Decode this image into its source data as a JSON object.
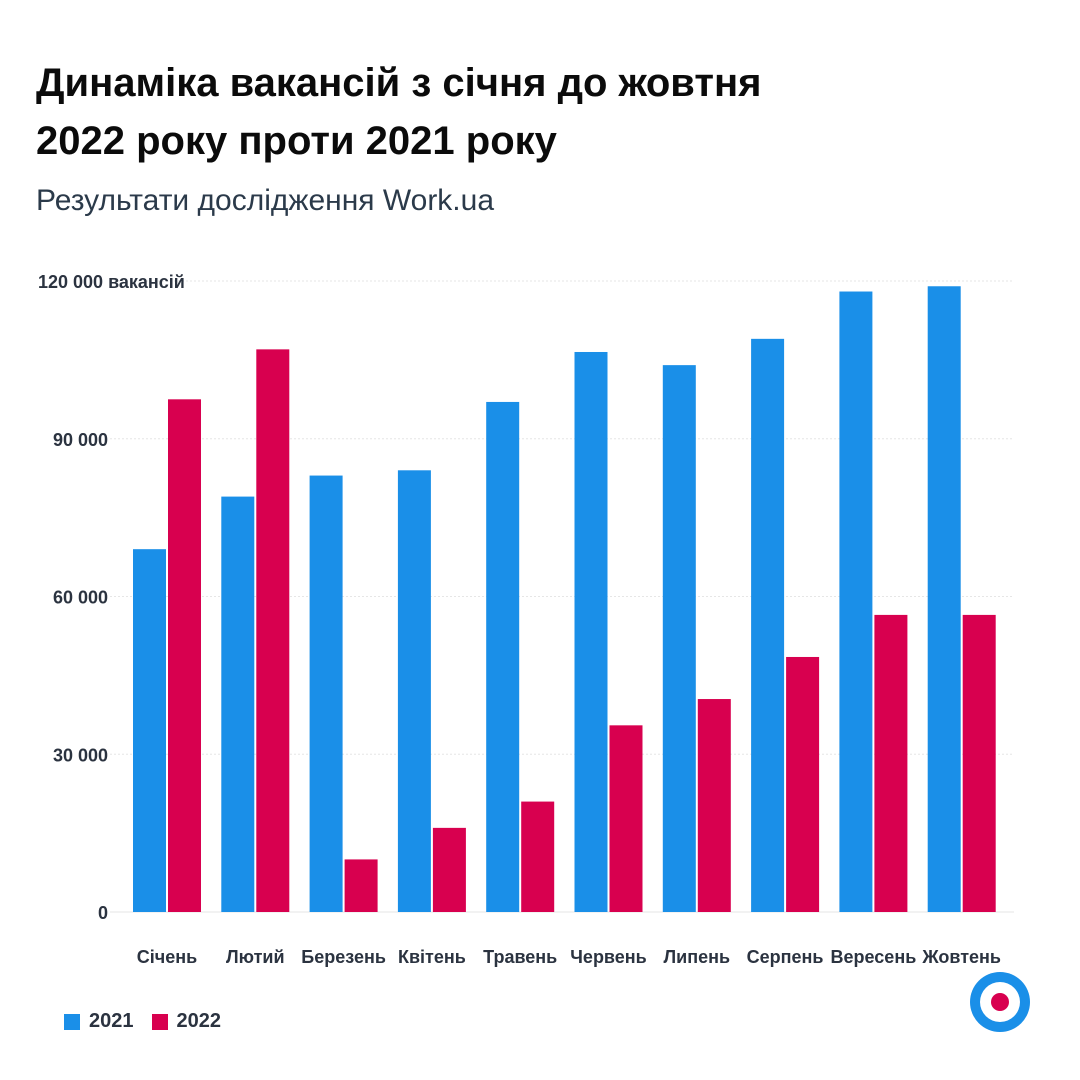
{
  "header": {
    "title_line1": "Динаміка вакансій з січня до жовтня",
    "title_line2": "2022 року проти 2021 року",
    "subtitle": "Результати дослідження Work.ua"
  },
  "colors": {
    "series_2021": "#1a8fe8",
    "series_2022": "#d8004f",
    "grid": "#e6e6e6",
    "axis_text": "#2b3340"
  },
  "logo": {
    "icon": "work-ua-logo-icon"
  },
  "chart_data": {
    "type": "bar",
    "title": "Динаміка вакансій з січня до жовтня 2022 року проти 2021 року",
    "subtitle": "Результати дослідження Work.ua",
    "categories": [
      "Січень",
      "Лютий",
      "Березень",
      "Квітень",
      "Травень",
      "Червень",
      "Липень",
      "Серпень",
      "Вересень",
      "Жовтень"
    ],
    "series": [
      {
        "name": "2021",
        "values": [
          69000,
          79000,
          83000,
          84000,
          97000,
          106500,
          104000,
          109000,
          118000,
          119000
        ]
      },
      {
        "name": "2022",
        "values": [
          97500,
          107000,
          10000,
          16000,
          21000,
          35500,
          40500,
          48500,
          56500,
          56500
        ]
      }
    ],
    "yticks": [
      {
        "value": 0,
        "label": "0"
      },
      {
        "value": 30000,
        "label": "30 000"
      },
      {
        "value": 60000,
        "label": "60 000"
      },
      {
        "value": 90000,
        "label": "90 000"
      },
      {
        "value": 120000,
        "label": "120 000 вакансій"
      }
    ],
    "ylim": [
      0,
      120000
    ],
    "grid": true,
    "legend_position": "bottom-left"
  }
}
